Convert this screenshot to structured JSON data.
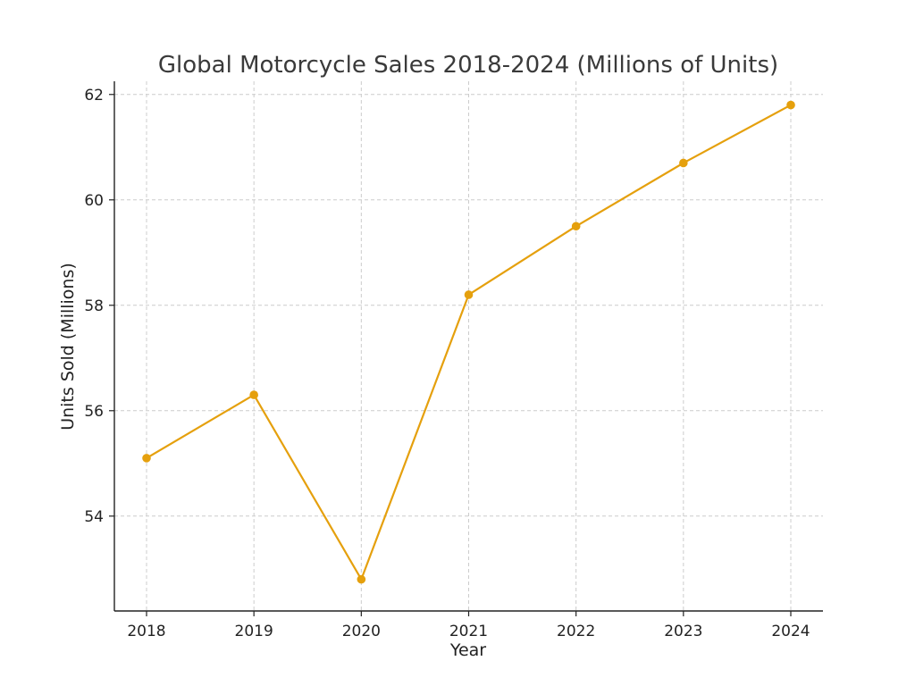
{
  "chart_data": {
    "type": "line",
    "title": "Global Motorcycle Sales 2018-2024 (Millions of Units)",
    "xlabel": "Year",
    "ylabel": "Units Sold (Millions)",
    "categories": [
      "2018",
      "2019",
      "2020",
      "2021",
      "2022",
      "2023",
      "2024"
    ],
    "series": [
      {
        "values": [
          55.1,
          56.3,
          52.8,
          58.2,
          59.5,
          60.7,
          61.8
        ],
        "color": "#e5a00d"
      }
    ],
    "ylim": [
      52.2,
      62.25
    ],
    "yticks": [
      54,
      56,
      58,
      60,
      62
    ],
    "grid": true,
    "marker": "circle",
    "legend": "none"
  }
}
